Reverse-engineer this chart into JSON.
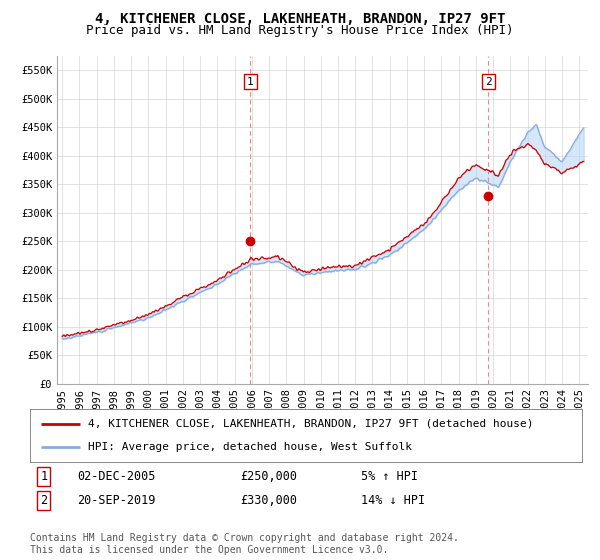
{
  "title": "4, KITCHENER CLOSE, LAKENHEATH, BRANDON, IP27 9FT",
  "subtitle": "Price paid vs. HM Land Registry's House Price Index (HPI)",
  "ylim": [
    0,
    575000
  ],
  "yticks": [
    0,
    50000,
    100000,
    150000,
    200000,
    250000,
    300000,
    350000,
    400000,
    450000,
    500000,
    550000
  ],
  "ytick_labels": [
    "£0",
    "£50K",
    "£100K",
    "£150K",
    "£200K",
    "£250K",
    "£300K",
    "£350K",
    "£400K",
    "£450K",
    "£500K",
    "£550K"
  ],
  "xlim_start": 1994.7,
  "xlim_end": 2025.5,
  "xtick_years": [
    1995,
    1996,
    1997,
    1998,
    1999,
    2000,
    2001,
    2002,
    2003,
    2004,
    2005,
    2006,
    2007,
    2008,
    2009,
    2010,
    2011,
    2012,
    2013,
    2014,
    2015,
    2016,
    2017,
    2018,
    2019,
    2020,
    2021,
    2022,
    2023,
    2024,
    2025
  ],
  "price_paid_color": "#cc0000",
  "hpi_color": "#88aadd",
  "fill_color": "#ddeeff",
  "marker1_x": 2005.917,
  "marker1_y": 250000,
  "marker2_x": 2019.722,
  "marker2_y": 330000,
  "vline_color": "#ee8888",
  "legend_line1": "4, KITCHENER CLOSE, LAKENHEATH, BRANDON, IP27 9FT (detached house)",
  "legend_line2": "HPI: Average price, detached house, West Suffolk",
  "table_data": [
    {
      "num": "1",
      "date": "02-DEC-2005",
      "price": "£250,000",
      "hpi": "5% ↑ HPI"
    },
    {
      "num": "2",
      "date": "20-SEP-2019",
      "price": "£330,000",
      "hpi": "14% ↓ HPI"
    }
  ],
  "footnote": "Contains HM Land Registry data © Crown copyright and database right 2024.\nThis data is licensed under the Open Government Licence v3.0.",
  "background_color": "#ffffff",
  "grid_color": "#cccccc",
  "title_fontsize": 10,
  "subtitle_fontsize": 9,
  "tick_fontsize": 7.5,
  "legend_fontsize": 8,
  "table_fontsize": 8.5,
  "footnote_fontsize": 7
}
